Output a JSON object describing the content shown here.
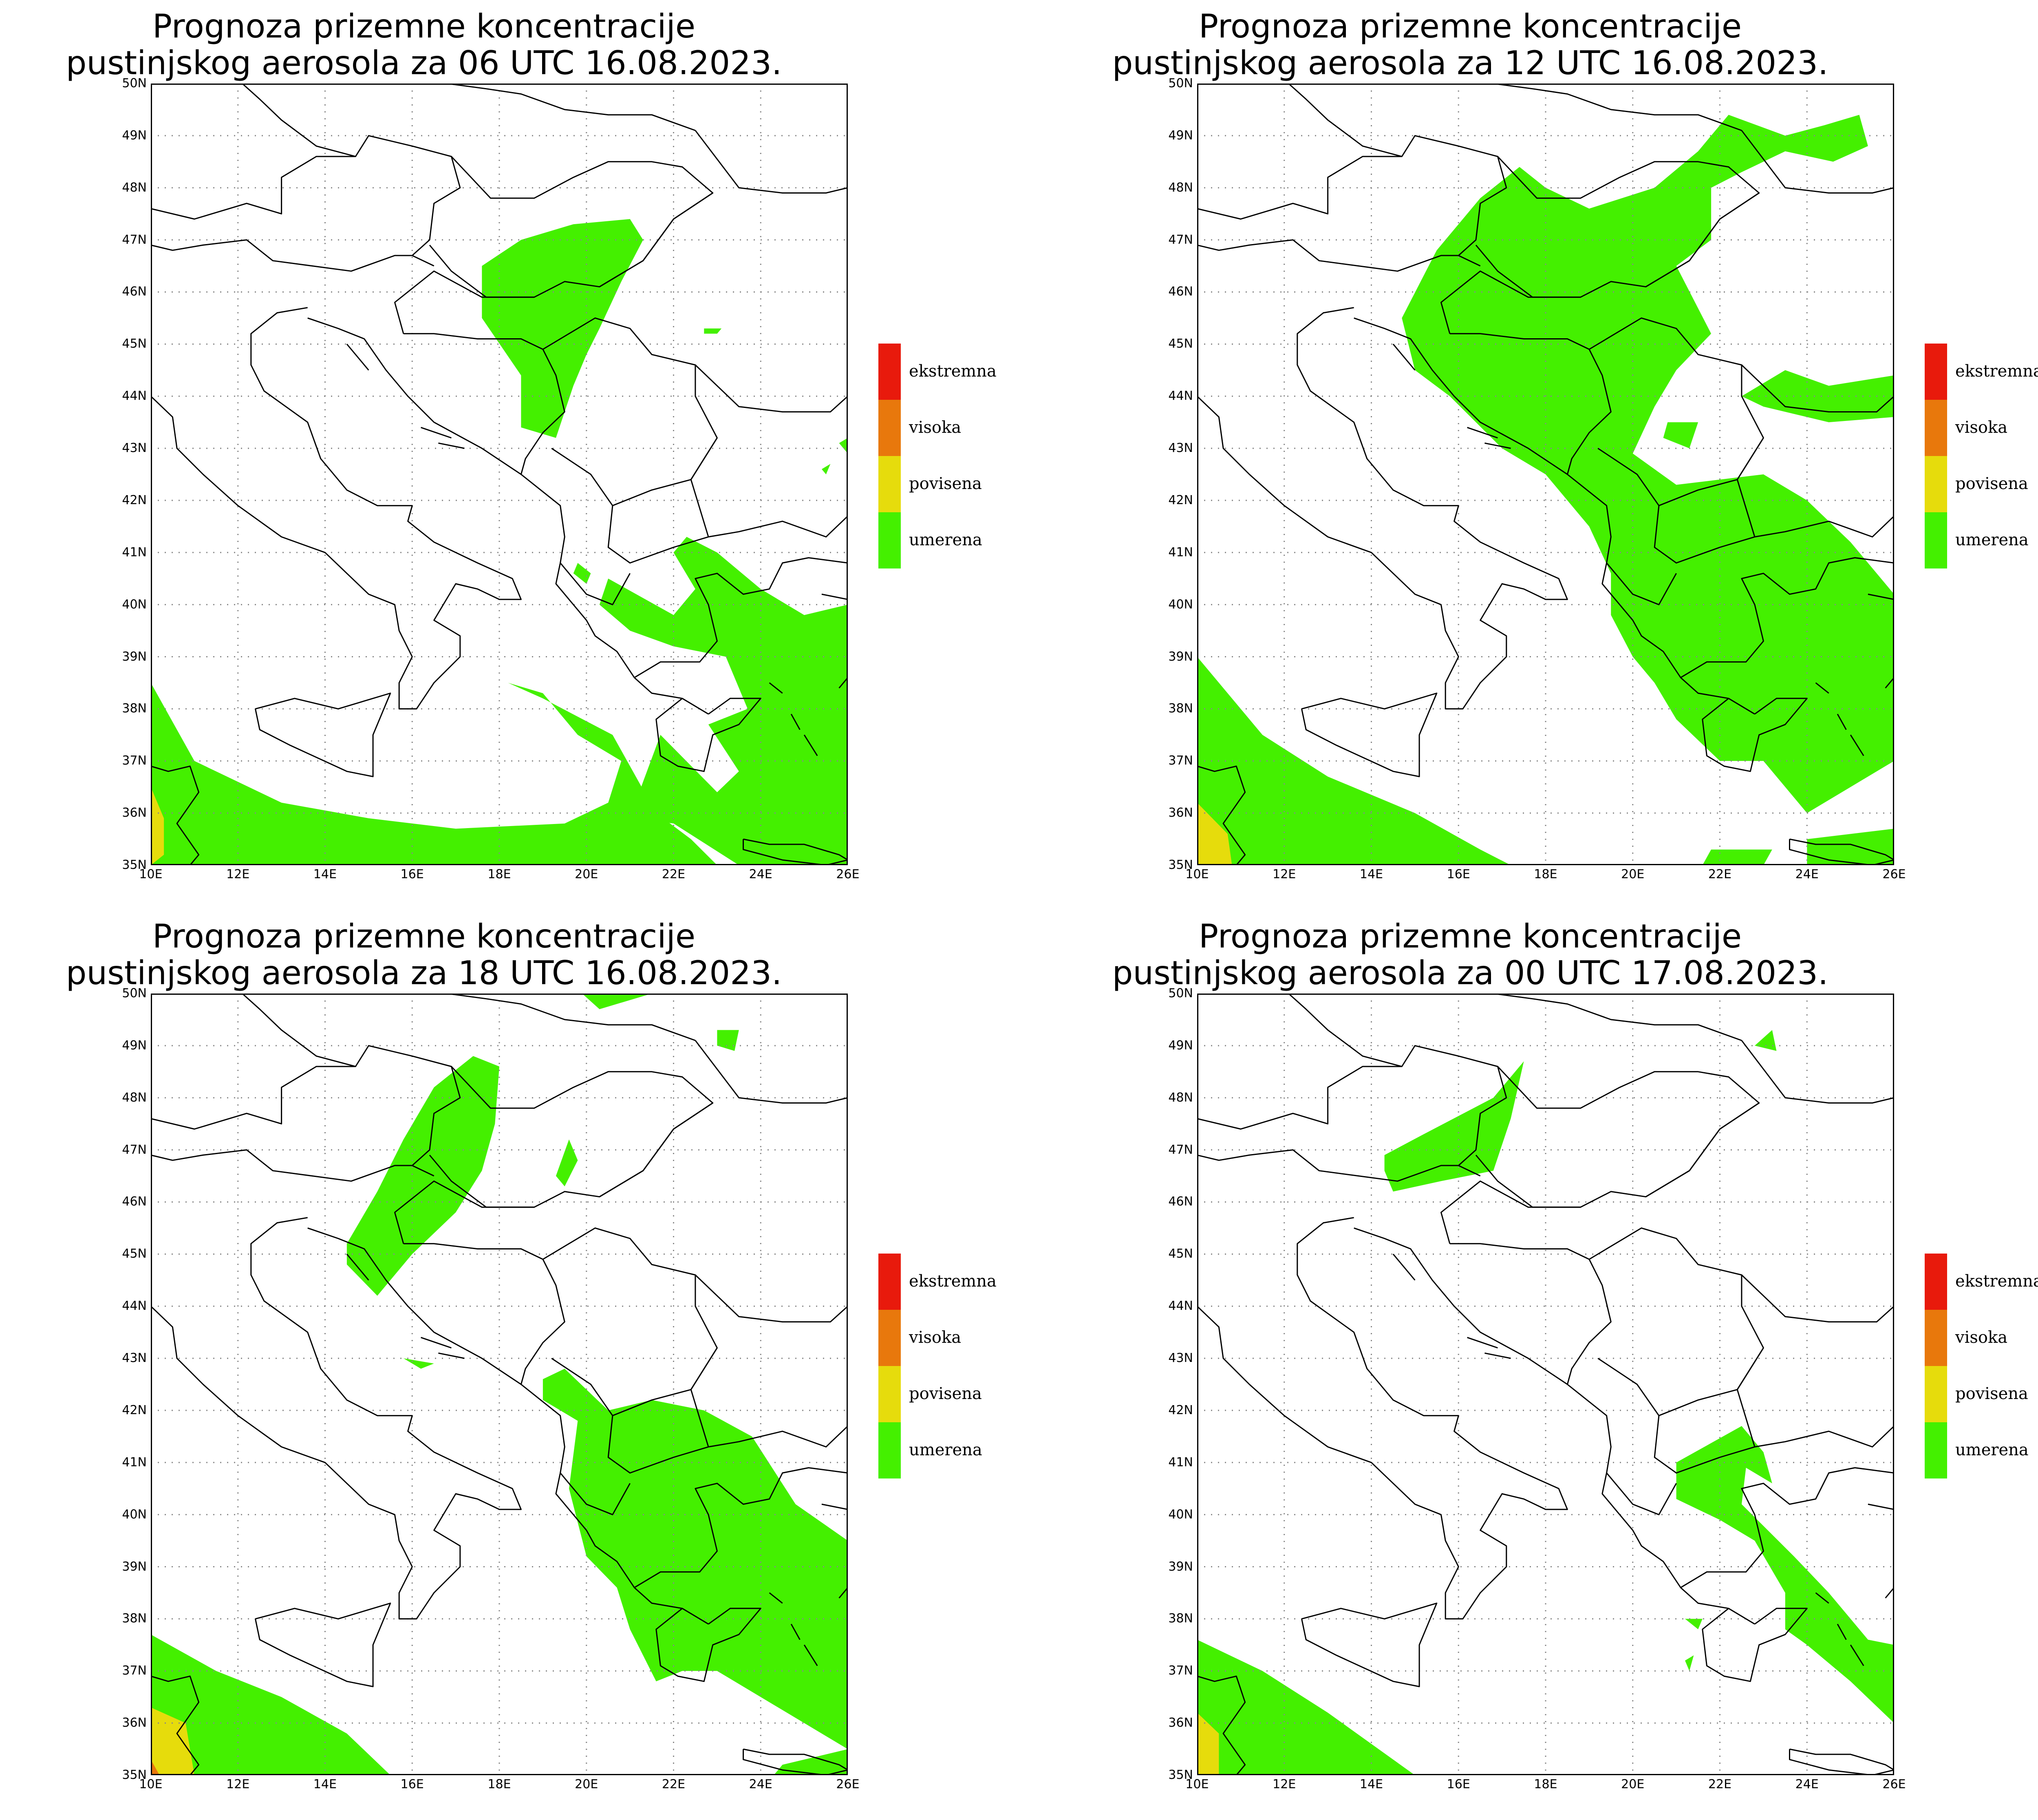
{
  "panels": [
    {
      "id": "p06",
      "title_line1": "Prognoza prizemne koncentracije",
      "title_line2": "pustinjskog aerosola za 06 UTC 16.08.2023."
    },
    {
      "id": "p12",
      "title_line1": "Prognoza prizemne koncentracije",
      "title_line2": "pustinjskog aerosola za 12 UTC 16.08.2023."
    },
    {
      "id": "p18",
      "title_line1": "Prognoza prizemne koncentracije",
      "title_line2": "pustinjskog aerosola za 18 UTC 16.08.2023."
    },
    {
      "id": "p00",
      "title_line1": "Prognoza prizemne koncentracije",
      "title_line2": "pustinjskog aerosola za 00 UTC 17.08.2023."
    }
  ],
  "axes": {
    "lat_labels": [
      "50N",
      "49N",
      "48N",
      "47N",
      "46N",
      "45N",
      "44N",
      "43N",
      "42N",
      "41N",
      "40N",
      "39N",
      "38N",
      "37N",
      "36N",
      "35N"
    ],
    "lon_labels": [
      "10E",
      "12E",
      "14E",
      "16E",
      "18E",
      "20E",
      "22E",
      "24E",
      "26E"
    ]
  },
  "legend": [
    {
      "label": "ekstremna",
      "color": "#e81a0c"
    },
    {
      "label": "visoka",
      "color": "#e8780c"
    },
    {
      "label": "povisena",
      "color": "#e6dc0c"
    },
    {
      "label": "umerena",
      "color": "#44f000"
    }
  ],
  "colors": {
    "umerena": "#44f000",
    "povisena": "#e6dc0c",
    "visoka": "#e8780c",
    "ekstremna": "#e81a0c",
    "border": "#000000",
    "grid": "#888888"
  }
}
